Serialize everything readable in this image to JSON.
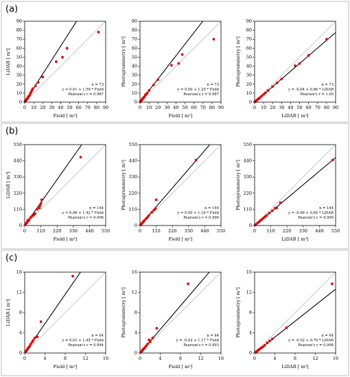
{
  "rows": [
    {
      "label": "(a)",
      "charts": [
        {
          "type": "scatter",
          "xlabel": "Field [ m³]",
          "ylabel": "LiDAR [ m³]",
          "xlim": [
            0,
            90
          ],
          "ylim": [
            0,
            90
          ],
          "ticks": [
            0,
            10,
            20,
            30,
            40,
            50,
            60,
            70,
            80,
            90
          ],
          "annotation": [
            "n = 73",
            "y = 0.01 + 1.56 * Field",
            "Pearson's r = 0.987"
          ],
          "fit": {
            "intercept": 0.01,
            "slope": 1.56
          },
          "points": [
            [
              0.5,
              0.8
            ],
            [
              1,
              1.5
            ],
            [
              1.5,
              2
            ],
            [
              2,
              3
            ],
            [
              2.5,
              3.5
            ],
            [
              3,
              4
            ],
            [
              3.5,
              5
            ],
            [
              4,
              6
            ],
            [
              5,
              7
            ],
            [
              6,
              9
            ],
            [
              7,
              11
            ],
            [
              8,
              13
            ],
            [
              9,
              15
            ],
            [
              12,
              18
            ],
            [
              15,
              22
            ],
            [
              20,
              28
            ],
            [
              35,
              45
            ],
            [
              42,
              50
            ],
            [
              47,
              60
            ],
            [
              82,
              78
            ]
          ]
        },
        {
          "type": "scatter",
          "xlabel": "Field [ m³]",
          "ylabel": "Photogrammetry [ m³]",
          "xlim": [
            0,
            90
          ],
          "ylim": [
            0,
            90
          ],
          "ticks": [
            0,
            10,
            20,
            30,
            40,
            50,
            60,
            70,
            80,
            90
          ],
          "annotation": [
            "n = 73",
            "y = 0.00 + 1.29 * Field",
            "Pearson's r = 0.987"
          ],
          "fit": {
            "intercept": 0.0,
            "slope": 1.29
          },
          "points": [
            [
              0.5,
              0.6
            ],
            [
              1,
              1.2
            ],
            [
              1.5,
              2
            ],
            [
              2,
              2.5
            ],
            [
              2.5,
              3
            ],
            [
              3,
              4
            ],
            [
              3.5,
              4.5
            ],
            [
              4,
              5
            ],
            [
              5,
              6
            ],
            [
              6,
              8
            ],
            [
              7,
              9
            ],
            [
              8,
              10
            ],
            [
              10,
              13
            ],
            [
              15,
              19
            ],
            [
              20,
              25
            ],
            [
              35,
              41
            ],
            [
              43,
              43
            ],
            [
              47,
              53
            ],
            [
              82,
              70
            ]
          ]
        },
        {
          "type": "scatter",
          "xlabel": "LiDAR [ m³]",
          "ylabel": "Photogrammetry [ m³]",
          "xlim": [
            0,
            90
          ],
          "ylim": [
            0,
            90
          ],
          "ticks": [
            0,
            10,
            20,
            30,
            40,
            50,
            60,
            70,
            80,
            90
          ],
          "annotation": [
            "n = 73",
            "y = -0.04 + 0.86 * LiDAR",
            "Pearson's r = 1.00"
          ],
          "fit": {
            "intercept": -0.04,
            "slope": 0.86
          },
          "points": [
            [
              0.5,
              0.4
            ],
            [
              1,
              0.9
            ],
            [
              2,
              1.7
            ],
            [
              3,
              2.6
            ],
            [
              4,
              3.4
            ],
            [
              5,
              4.3
            ],
            [
              6,
              5.1
            ],
            [
              8,
              6.9
            ],
            [
              10,
              8.6
            ],
            [
              12,
              10.3
            ],
            [
              15,
              12.9
            ],
            [
              20,
              17.2
            ],
            [
              25,
              21.5
            ],
            [
              30,
              25.8
            ],
            [
              45,
              40.5
            ],
            [
              50,
              43
            ],
            [
              60,
              52
            ],
            [
              80,
              70
            ]
          ]
        }
      ]
    },
    {
      "label": "(b)",
      "charts": [
        {
          "type": "scatter",
          "xlabel": "Field [ m³]",
          "ylabel": "LiDAR [ m³]",
          "xlim": [
            0,
            550
          ],
          "ylim": [
            0,
            550
          ],
          "ticks": [
            0,
            110,
            220,
            330,
            440,
            550
          ],
          "annotation": [
            "n = 144",
            "y = 0.06 + 1.42 * Field",
            "Pearson's r = 0.996"
          ],
          "fit": {
            "intercept": 0.06,
            "slope": 1.42
          },
          "points": [
            [
              5,
              7
            ],
            [
              10,
              14
            ],
            [
              15,
              20
            ],
            [
              20,
              35
            ],
            [
              25,
              30
            ],
            [
              30,
              40
            ],
            [
              40,
              55
            ],
            [
              50,
              65
            ],
            [
              60,
              70
            ],
            [
              70,
              80
            ],
            [
              85,
              110
            ],
            [
              100,
              120
            ],
            [
              105,
              135
            ],
            [
              110,
              150
            ],
            [
              115,
              175
            ],
            [
              380,
              465
            ]
          ]
        },
        {
          "type": "scatter",
          "xlabel": "Field [ m³]",
          "ylabel": "Photogrammetry [ m³]",
          "xlim": [
            0,
            550
          ],
          "ylim": [
            0,
            550
          ],
          "ticks": [
            0,
            110,
            220,
            330,
            440,
            550
          ],
          "annotation": [
            "n = 144",
            "y = 0.00 + 1.16 * Field",
            "Pearson's r = 0.996"
          ],
          "fit": {
            "intercept": 0.0,
            "slope": 1.16
          },
          "points": [
            [
              5,
              6
            ],
            [
              10,
              11
            ],
            [
              15,
              17
            ],
            [
              20,
              23
            ],
            [
              25,
              28
            ],
            [
              30,
              34
            ],
            [
              40,
              46
            ],
            [
              50,
              55
            ],
            [
              60,
              68
            ],
            [
              80,
              90
            ],
            [
              95,
              105
            ],
            [
              105,
              115
            ],
            [
              110,
              175
            ],
            [
              380,
              445
            ]
          ]
        },
        {
          "type": "scatter",
          "xlabel": "LiDAR [ m³]",
          "ylabel": "Photogrammetry [ m³]",
          "xlim": [
            0,
            550
          ],
          "ylim": [
            0,
            550
          ],
          "ticks": [
            0,
            110,
            220,
            330,
            440,
            550
          ],
          "annotation": [
            "n = 144",
            "y = -0.06 + 0.84 * LiDAR",
            "Pearson's r = 0.999"
          ],
          "fit": {
            "intercept": -0.06,
            "slope": 0.84
          },
          "points": [
            [
              5,
              4
            ],
            [
              10,
              8
            ],
            [
              20,
              17
            ],
            [
              30,
              25
            ],
            [
              40,
              34
            ],
            [
              50,
              42
            ],
            [
              60,
              50
            ],
            [
              70,
              59
            ],
            [
              80,
              67
            ],
            [
              100,
              84
            ],
            [
              120,
              100
            ],
            [
              140,
              118
            ],
            [
              150,
              120
            ],
            [
              175,
              155
            ],
            [
              530,
              445
            ]
          ]
        }
      ]
    },
    {
      "label": "(c)",
      "charts": [
        {
          "type": "scatter",
          "xlabel": "Field [ m³]",
          "ylabel": "LiDAR [ m³]",
          "xlim": [
            0,
            16
          ],
          "ylim": [
            0,
            16
          ],
          "ticks": [
            0,
            4,
            8,
            12,
            16
          ],
          "annotation": [
            "n = 64",
            "y = 0.01 + 1.45 * Field",
            "Pearson's r = 0.994"
          ],
          "fit": {
            "intercept": 0.01,
            "slope": 1.45
          },
          "points": [
            [
              0.2,
              0.3
            ],
            [
              0.4,
              0.5
            ],
            [
              0.5,
              0.7
            ],
            [
              0.6,
              0.9
            ],
            [
              0.8,
              1.1
            ],
            [
              1,
              1.4
            ],
            [
              1.2,
              1.8
            ],
            [
              1.5,
              2.2
            ],
            [
              1.7,
              2.5
            ],
            [
              2,
              3
            ],
            [
              2.5,
              3.2
            ],
            [
              3.2,
              6.2
            ],
            [
              9.5,
              15.2
            ]
          ]
        },
        {
          "type": "scatter",
          "xlabel": "Field [ m³]",
          "ylabel": "Photogrammetry [ m³]",
          "xlim": [
            0,
            16
          ],
          "ylim": [
            0,
            16
          ],
          "ticks": [
            0,
            4,
            8,
            12,
            16
          ],
          "annotation": [
            "n = 64",
            "y = -0.02 + 1.17 * Field",
            "Pearson's r = 0.993"
          ],
          "fit": {
            "intercept": -0.02,
            "slope": 1.17
          },
          "points": [
            [
              0.2,
              0.2
            ],
            [
              0.4,
              0.4
            ],
            [
              0.5,
              0.6
            ],
            [
              0.6,
              0.7
            ],
            [
              0.8,
              0.9
            ],
            [
              1,
              1.1
            ],
            [
              1.2,
              1.4
            ],
            [
              1.5,
              1.8
            ],
            [
              1.8,
              2.6
            ],
            [
              2,
              2.2
            ],
            [
              2.5,
              3
            ],
            [
              3.3,
              4.9
            ],
            [
              9.5,
              13.7
            ]
          ]
        },
        {
          "type": "scatter",
          "xlabel": "LiDAR [ m³]",
          "ylabel": "Photogrammetry [ m³]",
          "xlim": [
            0,
            16
          ],
          "ylim": [
            0,
            16
          ],
          "ticks": [
            0,
            4,
            8,
            12,
            16
          ],
          "annotation": [
            "n = 64",
            "y = -0.02 + 0.79 * LiDAR",
            "Pearson's r = 0.998"
          ],
          "fit": {
            "intercept": -0.02,
            "slope": 0.79
          },
          "points": [
            [
              0.2,
              0.15
            ],
            [
              0.4,
              0.3
            ],
            [
              0.6,
              0.45
            ],
            [
              0.8,
              0.6
            ],
            [
              1,
              0.8
            ],
            [
              1.3,
              1
            ],
            [
              1.6,
              1.2
            ],
            [
              2,
              1.5
            ],
            [
              2.5,
              2
            ],
            [
              3,
              2.4
            ],
            [
              3.5,
              2.8
            ],
            [
              6.3,
              5
            ],
            [
              15.3,
              13.7
            ]
          ]
        }
      ]
    }
  ]
}
